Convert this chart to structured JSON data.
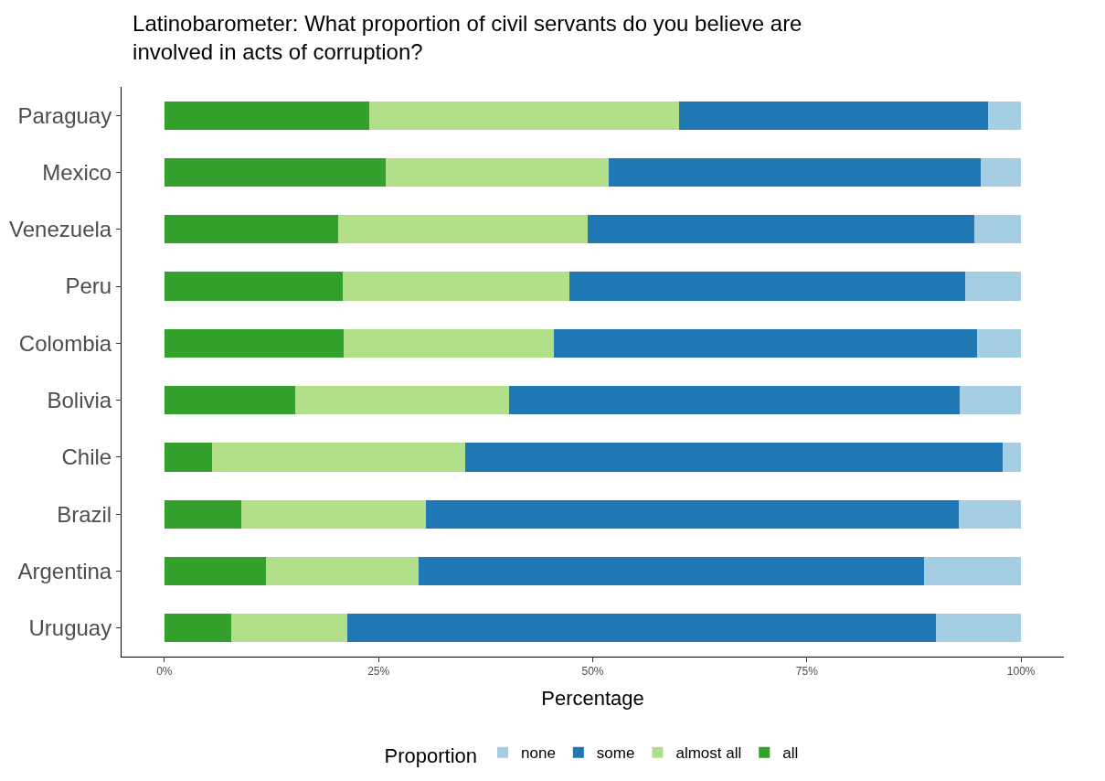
{
  "chart_data": {
    "type": "bar",
    "orientation": "horizontal",
    "stacked": true,
    "title": "Latinobarometer: What proportion of civil servants do you believe are\ninvolved in acts of corruption?",
    "xlabel": "Percentage",
    "legend_title": "Proportion",
    "legend": "bottom",
    "categories": [
      "Paraguay",
      "Mexico",
      "Venezuela",
      "Peru",
      "Colombia",
      "Bolivia",
      "Chile",
      "Brazil",
      "Argentina",
      "Uruguay"
    ],
    "xlim": [
      -5,
      105
    ],
    "xticks": [
      {
        "value": 0,
        "label": "0%"
      },
      {
        "value": 25,
        "label": "25%"
      },
      {
        "value": 50,
        "label": "50%"
      },
      {
        "value": 75,
        "label": "75%"
      },
      {
        "value": 100,
        "label": "100%"
      }
    ],
    "series": [
      {
        "name": "all",
        "color": "#33a02c",
        "values": [
          23.9,
          25.8,
          20.3,
          20.8,
          20.9,
          15.3,
          5.6,
          9.0,
          11.9,
          7.8
        ]
      },
      {
        "name": "almost all",
        "color": "#b2df8a",
        "values": [
          36.2,
          26.1,
          29.1,
          26.5,
          24.6,
          24.9,
          29.5,
          21.5,
          17.8,
          13.5
        ]
      },
      {
        "name": "some",
        "color": "#1f78b4",
        "values": [
          36.0,
          43.4,
          45.1,
          46.2,
          49.4,
          52.6,
          62.7,
          62.2,
          59.0,
          68.8
        ]
      },
      {
        "name": "none",
        "color": "#a6cee3",
        "values": [
          3.9,
          4.7,
          5.5,
          6.5,
          5.1,
          7.2,
          2.2,
          7.3,
          11.3,
          9.9
        ]
      }
    ]
  }
}
